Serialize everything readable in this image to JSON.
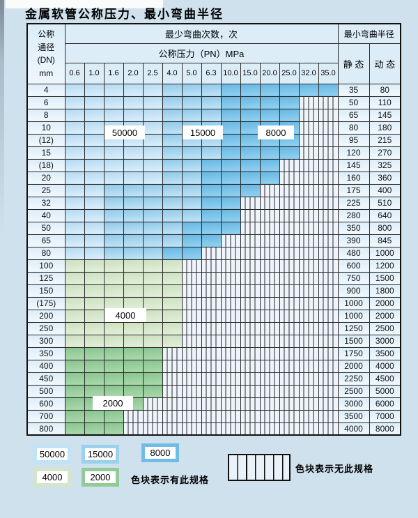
{
  "title": "金属软管公称压力、最小弯曲半径",
  "table": {
    "header": {
      "dn_lines": [
        "公称",
        "通径",
        "(DN)",
        "mm"
      ],
      "cycles_title": "最少弯曲次数，次",
      "pressure_title": "公称压力（PN）MPa",
      "radius_title": "最小弯曲半径",
      "static_label": "静 态",
      "dynamic_label": "动 态",
      "pressures": [
        "0.6",
        "1.0",
        "1.6",
        "2.0",
        "2.5",
        "4.0",
        "5.0",
        "6.3",
        "10.0",
        "15.0",
        "20.0",
        "25.0",
        "32.0",
        "35.0"
      ]
    },
    "zone_codes": {
      "L": "50000 cycles (light blue)",
      "M": "15000 cycles (medium blue)",
      "D": "8000 cycles (dark blue)",
      "G": "4000 cycles (light green)",
      "E": "2000 cycles (dark green)",
      "H": "no specification (hatched)"
    },
    "rows": [
      {
        "dn": "4",
        "zones": "LLLLLMMMDDDDDD",
        "static": "35",
        "dynamic": "80"
      },
      {
        "dn": "6",
        "zones": "LLLLLMMMDDDDHH",
        "static": "50",
        "dynamic": "110"
      },
      {
        "dn": "8",
        "zones": "LLLLLMMMDDDDHH",
        "static": "65",
        "dynamic": "145"
      },
      {
        "dn": "10",
        "zones": "LLLLLMMMDDDDHH",
        "static": "80",
        "dynamic": "180"
      },
      {
        "dn": "(12)",
        "zones": "LLLLLMMMDDDDHH",
        "static": "95",
        "dynamic": "215"
      },
      {
        "dn": "15",
        "zones": "LLLLLMMMDDDDHH",
        "static": "120",
        "dynamic": "270"
      },
      {
        "dn": "(18)",
        "zones": "LLLLLMMDDDDHHH",
        "static": "145",
        "dynamic": "325"
      },
      {
        "dn": "20",
        "zones": "LLLLLMMDDDDHHH",
        "static": "160",
        "dynamic": "360"
      },
      {
        "dn": "25",
        "zones": "LLMMMMMDDDHHHH",
        "static": "175",
        "dynamic": "400"
      },
      {
        "dn": "32",
        "zones": "LLMMMMMDDHHHHH",
        "static": "225",
        "dynamic": "510"
      },
      {
        "dn": "40",
        "zones": "LLMMMMMDDHHHHH",
        "static": "280",
        "dynamic": "640"
      },
      {
        "dn": "50",
        "zones": "LLMMMMDDDHHHHH",
        "static": "350",
        "dynamic": "800"
      },
      {
        "dn": "65",
        "zones": "LLMMMMDDHHHHHH",
        "static": "390",
        "dynamic": "845"
      },
      {
        "dn": "80",
        "zones": "LLMMMDDHHHHHHH",
        "static": "480",
        "dynamic": "1000"
      },
      {
        "dn": "100",
        "zones": "GGGGGGHHHHHHHH",
        "static": "600",
        "dynamic": "1200"
      },
      {
        "dn": "125",
        "zones": "GGGGGGHHHHHHHH",
        "static": "750",
        "dynamic": "1500"
      },
      {
        "dn": "150",
        "zones": "GGGGGGHHHHHHHH",
        "static": "900",
        "dynamic": "1800"
      },
      {
        "dn": "(175)",
        "zones": "GGGGGGHHHHHHHH",
        "static": "1000",
        "dynamic": "2000"
      },
      {
        "dn": "200",
        "zones": "GGGGGGHHHHHHHH",
        "static": "1000",
        "dynamic": "2000"
      },
      {
        "dn": "250",
        "zones": "GGGGGGHHHHHHHH",
        "static": "1250",
        "dynamic": "2500"
      },
      {
        "dn": "300",
        "zones": "GGGGGGHHHHHHHH",
        "static": "1500",
        "dynamic": "3000"
      },
      {
        "dn": "350",
        "zones": "EEEEEHHHHHHHHH",
        "static": "1750",
        "dynamic": "3500"
      },
      {
        "dn": "400",
        "zones": "EEEEEHHHHHHHHH",
        "static": "2000",
        "dynamic": "4000"
      },
      {
        "dn": "450",
        "zones": "EEEEEHHHHHHHHH",
        "static": "2250",
        "dynamic": "4500"
      },
      {
        "dn": "500",
        "zones": "EEEEEHHHHHHHHH",
        "static": "2500",
        "dynamic": "5000"
      },
      {
        "dn": "600",
        "zones": "EEEEHHHHHHHHHH",
        "static": "3000",
        "dynamic": "6000"
      },
      {
        "dn": "700",
        "zones": "EEEHHHHHHHHHHH",
        "static": "3500",
        "dynamic": "7000"
      },
      {
        "dn": "800",
        "zones": "EEEHHHHHHHHHHH",
        "static": "4000",
        "dynamic": "8000"
      }
    ]
  },
  "overlay_labels": [
    {
      "text": "50000"
    },
    {
      "text": "15000"
    },
    {
      "text": "8000"
    },
    {
      "text": "4000"
    },
    {
      "text": "2000"
    }
  ],
  "legend": {
    "chips": [
      {
        "label": "50000",
        "color": "#c2e2f5"
      },
      {
        "label": "15000",
        "color": "#9cd1ee"
      },
      {
        "label": "8000",
        "color": "#6fbde6"
      },
      {
        "label": "4000",
        "color": "#d3e6c9"
      },
      {
        "label": "2000",
        "color": "#92cb98"
      }
    ],
    "has_spec_text": "色块表示有此规格",
    "no_spec_text": "色块表示无此规格"
  },
  "colors": {
    "page_background": "#cfe1ed",
    "header_cell": "#dcedf8",
    "zone_50000": "#c2e2f5",
    "zone_15000": "#9cd1ee",
    "zone_8000": "#6fbde6",
    "zone_4000": "#d3e6c9",
    "zone_2000": "#92cb98",
    "hatch_background": "#eef4fa",
    "border": "#111111"
  }
}
